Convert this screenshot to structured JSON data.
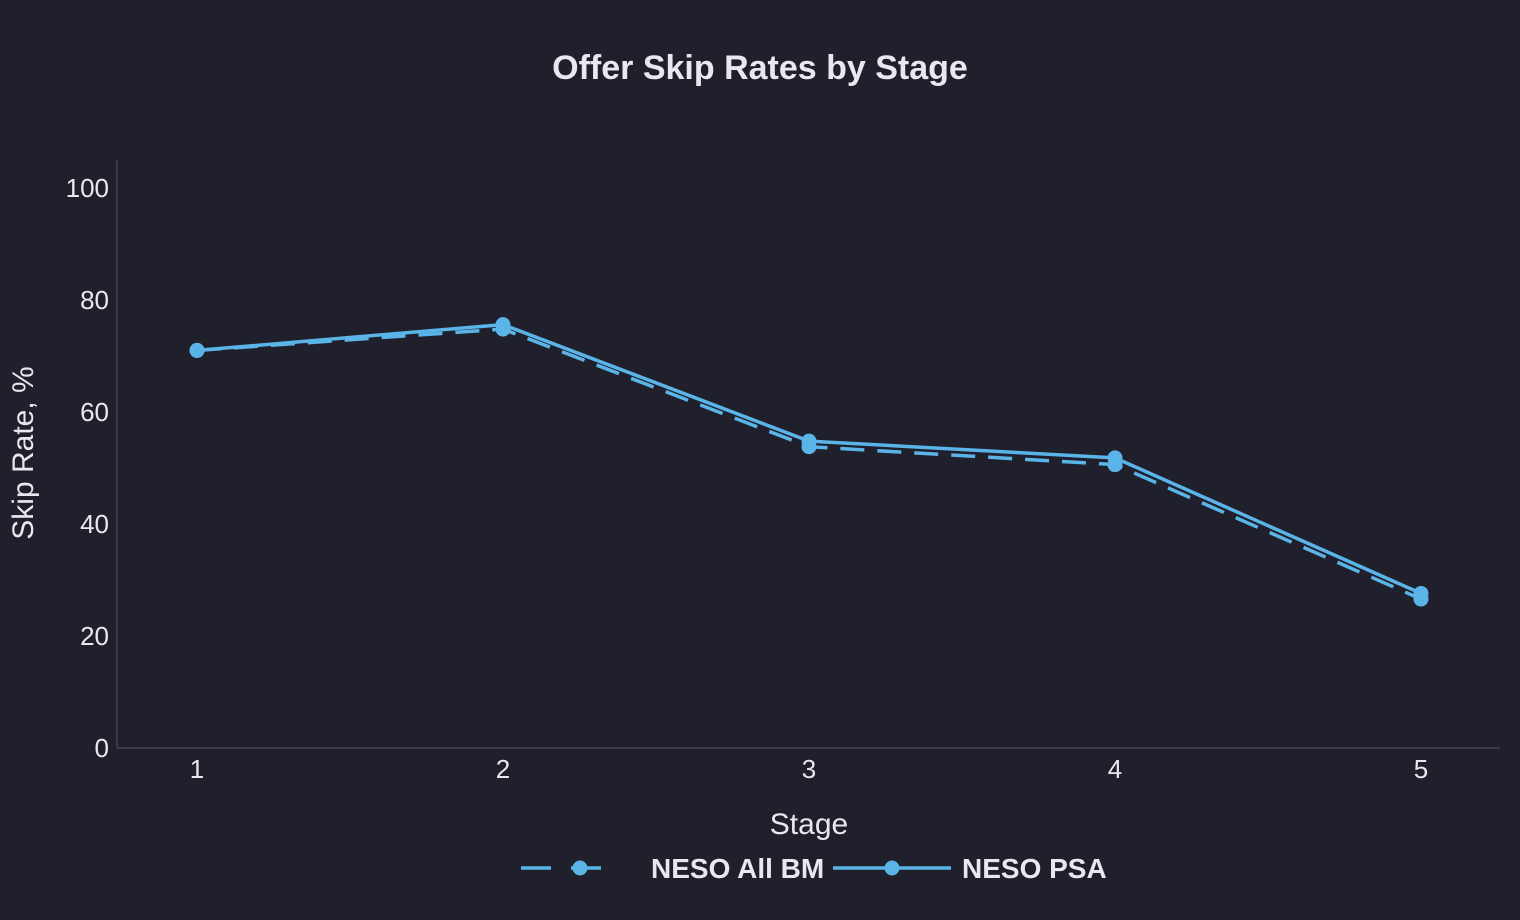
{
  "chart_data": {
    "type": "line",
    "title": "Offer Skip Rates by Stage",
    "xlabel": "Stage",
    "ylabel": "Skip Rate, %",
    "x": [
      1,
      2,
      3,
      4,
      5
    ],
    "x_tick_labels": [
      "1",
      "2",
      "3",
      "4",
      "5"
    ],
    "ylim": [
      0,
      100
    ],
    "y_ticks": [
      0,
      20,
      40,
      60,
      80,
      100
    ],
    "grid": false,
    "legend_position": "bottom-center",
    "series": [
      {
        "name": "NESO All BM",
        "values": [
          71,
          74.8,
          53.8,
          50.6,
          26.6
        ],
        "color": "#5ab4e8",
        "line_style": "dashed",
        "marker": "circle"
      },
      {
        "name": "NESO PSA",
        "values": [
          71,
          75.6,
          54.8,
          51.8,
          27.6
        ],
        "color": "#5ab4e8",
        "line_style": "solid",
        "marker": "circle"
      }
    ]
  }
}
